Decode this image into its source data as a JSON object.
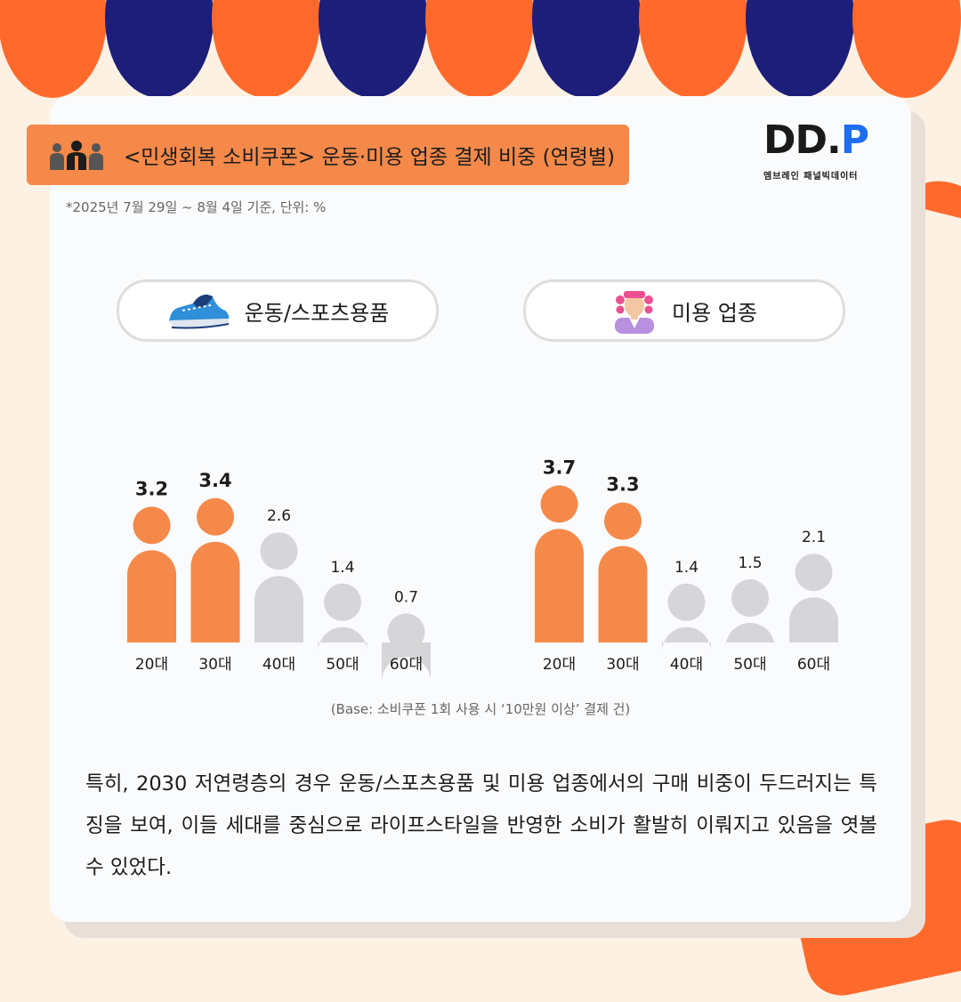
{
  "header": {
    "title": "<민생회복 소비쿠폰> 운동·미용 업종 결제 비중 (연령별)",
    "icon": "people-icon",
    "note": "*2025년 7월 29일 ~ 8월 4일 기준, 단위: %"
  },
  "logo": {
    "main_a": "DD.",
    "main_b": "P",
    "sub": "엠브레인 패널빅데이터"
  },
  "panels": {
    "left": {
      "label": "운동/스포츠용품",
      "icon": "sneaker-icon"
    },
    "right": {
      "label": "미용 업종",
      "icon": "hair-roller-woman-icon"
    }
  },
  "base_note": "(Base: 소비쿠폰 1회 사용 시 ‘10만원 이상’ 결제 건)",
  "body_text": "특히, 2030 저연령층의 경우 운동/스포츠용품 및 미용 업종에서의 구매 비중이 두드러지는 특징을 보여, 이들 세대를 중심으로 라이프스타일을 반영한 소비가 활발히 이뤄지고 있음을 엿볼 수 있었다.",
  "decor": {
    "percent": "%"
  },
  "colors": {
    "highlight": "#f5894a",
    "muted": "#d6d6d9",
    "accent": "#ff6a2c",
    "navy": "#1c1e7a",
    "logo_blue": "#1e6ef0"
  },
  "chart_data": [
    {
      "type": "bar",
      "title": "운동/스포츠용품",
      "categories": [
        "20대",
        "30대",
        "40대",
        "50대",
        "60대"
      ],
      "values": [
        3.2,
        3.4,
        2.6,
        1.4,
        0.7
      ],
      "labels": [
        "3.2",
        "3.4",
        "2.6",
        "1.4",
        "0.7"
      ],
      "highlight": [
        true,
        true,
        false,
        false,
        false
      ],
      "ylim": [
        0,
        4
      ]
    },
    {
      "type": "bar",
      "title": "미용 업종",
      "categories": [
        "20대",
        "30대",
        "40대",
        "50대",
        "60대"
      ],
      "values": [
        3.7,
        3.3,
        1.4,
        1.5,
        2.1
      ],
      "labels": [
        "3.7",
        "3.3",
        "1.4",
        "1.5",
        "2.1"
      ],
      "highlight": [
        true,
        true,
        false,
        false,
        false
      ],
      "ylim": [
        0,
        4
      ]
    }
  ]
}
